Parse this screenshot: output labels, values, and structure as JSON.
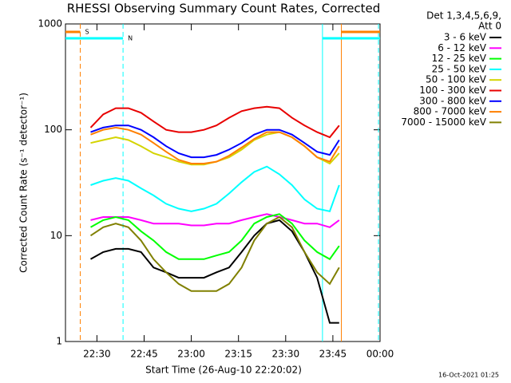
{
  "chart_data": {
    "type": "line",
    "title": "RHESSI Observing Summary Count Rates, Corrected",
    "xlabel": "Start Time (26-Aug-10 22:20:02)",
    "ylabel": "Corrected Count Rate (s⁻¹ detector⁻¹)",
    "legend_header": [
      "Det 1,3,4,5,6,9,",
      "Att 0"
    ],
    "footer": "16-Oct-2021 01:25",
    "log_y": true,
    "xlim": [
      0,
      100
    ],
    "ylim": [
      1,
      1000
    ],
    "xticks": [
      {
        "value": 10,
        "label": "22:30"
      },
      {
        "value": 25,
        "label": "22:45"
      },
      {
        "value": 40,
        "label": "23:00"
      },
      {
        "value": 55,
        "label": "23:15"
      },
      {
        "value": 70,
        "label": "23:30"
      },
      {
        "value": 85,
        "label": "23:45"
      },
      {
        "value": 100,
        "label": "00:00"
      }
    ],
    "yticks": [
      1,
      10,
      100,
      1000
    ],
    "x": [
      8,
      12,
      16,
      20,
      24,
      28,
      32,
      36,
      40,
      44,
      48,
      52,
      56,
      60,
      64,
      68,
      72,
      76,
      80,
      84,
      87
    ],
    "series": [
      {
        "name": "3 - 6 keV",
        "color": "#000000",
        "values": [
          6,
          7,
          7.5,
          7.5,
          7,
          5,
          4.5,
          4,
          4,
          4,
          4.5,
          5,
          7,
          10,
          13,
          14,
          11,
          7,
          4,
          1.5,
          1.5
        ]
      },
      {
        "name": "6 - 12 keV",
        "color": "#ff00ff",
        "values": [
          14,
          15,
          15,
          15,
          14,
          13,
          13,
          13,
          12.5,
          12.5,
          13,
          13,
          14,
          15,
          16,
          15,
          14,
          13,
          13,
          12,
          14
        ]
      },
      {
        "name": "12 - 25 keV",
        "color": "#00ff00",
        "values": [
          12,
          14,
          15,
          14,
          11,
          9,
          7,
          6,
          6,
          6,
          6.5,
          7,
          9,
          13,
          15,
          16,
          13,
          9,
          7,
          6,
          8
        ]
      },
      {
        "name": "25 - 50 keV",
        "color": "#00ffff",
        "values": [
          30,
          33,
          35,
          33,
          28,
          24,
          20,
          18,
          17,
          18,
          20,
          25,
          32,
          40,
          45,
          38,
          30,
          22,
          18,
          17,
          30
        ]
      },
      {
        "name": "50 - 100 keV",
        "color": "#d4d400",
        "values": [
          75,
          80,
          85,
          80,
          70,
          60,
          55,
          50,
          47,
          47,
          50,
          55,
          65,
          80,
          90,
          95,
          85,
          70,
          55,
          48,
          60
        ]
      },
      {
        "name": "100 - 300 keV",
        "color": "#e80000",
        "values": [
          105,
          140,
          160,
          160,
          145,
          120,
          100,
          95,
          95,
          100,
          110,
          130,
          150,
          160,
          165,
          160,
          130,
          110,
          95,
          85,
          110
        ]
      },
      {
        "name": "300 - 800 keV",
        "color": "#0000ff",
        "values": [
          95,
          105,
          110,
          110,
          100,
          85,
          70,
          60,
          55,
          55,
          58,
          65,
          75,
          90,
          100,
          100,
          90,
          75,
          62,
          58,
          80
        ]
      },
      {
        "name": "800 - 7000 keV",
        "color": "#ff8000",
        "values": [
          90,
          100,
          105,
          100,
          90,
          75,
          62,
          52,
          48,
          48,
          50,
          57,
          68,
          82,
          95,
          95,
          85,
          70,
          55,
          50,
          70
        ]
      },
      {
        "name": "7000 - 15000 keV",
        "color": "#808000",
        "values": [
          10,
          12,
          13,
          12,
          9,
          6,
          4.5,
          3.5,
          3,
          3,
          3,
          3.5,
          5,
          9,
          13,
          15,
          12,
          7,
          4.5,
          3.5,
          5
        ]
      }
    ],
    "vlines": [
      {
        "x": 4.7,
        "color": "#ff8000",
        "dashed": true
      },
      {
        "x": 18.3,
        "color": "#00ffff",
        "dashed": true
      },
      {
        "x": 81.7,
        "color": "#00ffff",
        "dashed": false
      },
      {
        "x": 87.7,
        "color": "#ff8000",
        "dashed": false
      },
      {
        "x": 99.5,
        "color": "#00ffff",
        "dashed": true
      }
    ],
    "flags": [
      {
        "label": "S",
        "color": "#ff8000",
        "x": [
          0,
          4.7
        ]
      },
      {
        "label": "N",
        "color": "#00ffff",
        "x": [
          0,
          18.3
        ]
      },
      {
        "color": "#00ffff",
        "x": [
          81.7,
          100
        ]
      },
      {
        "color": "#ff8000",
        "x": [
          87.7,
          100
        ]
      }
    ]
  }
}
